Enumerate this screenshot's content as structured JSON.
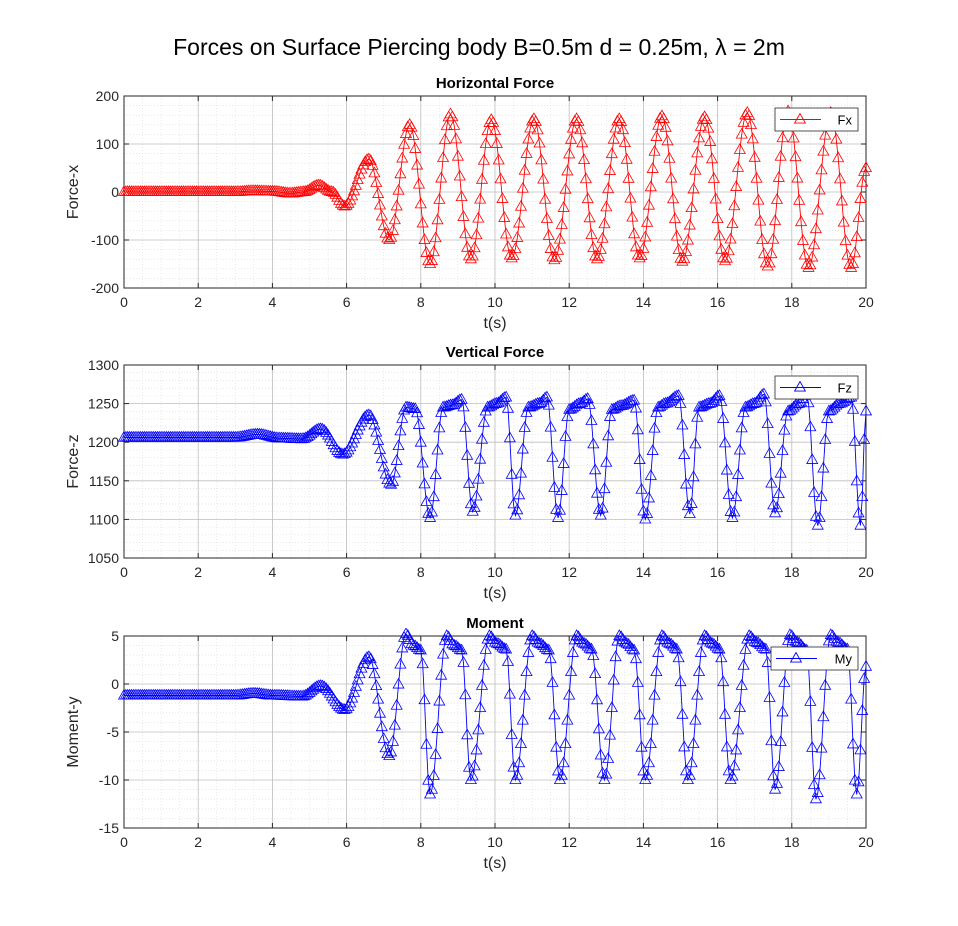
{
  "figure": {
    "title": "Forces on Surface Piercing body B=0.5m d = 0.25m, λ = 2m"
  },
  "chart_data": [
    {
      "type": "line",
      "title": "Horizontal Force",
      "xlabel": "t(s)",
      "ylabel": "Force-x",
      "xlim": [
        0,
        20
      ],
      "ylim": [
        -200,
        200
      ],
      "xticks": [
        "0",
        "2",
        "4",
        "6",
        "8",
        "10",
        "12",
        "14",
        "16",
        "18",
        "20"
      ],
      "yticks": [
        "-200",
        "-100",
        "0",
        "100",
        "200"
      ],
      "grid": true,
      "minor_grid": true,
      "legend_position": "top-right",
      "series": [
        {
          "name": "Fx",
          "color": "#ff0000",
          "marker": "triangle",
          "dt": 0.05,
          "x": [
            0,
            1,
            2,
            3,
            3.5,
            4,
            4.5,
            4.85,
            5.25,
            5.6,
            5.95,
            6.6,
            7.15,
            7.7,
            8.25,
            8.8,
            9.35,
            9.9,
            10.45,
            11.05,
            11.6,
            12.2,
            12.75,
            13.35,
            13.9,
            14.5,
            15.05,
            15.65,
            16.2,
            16.8,
            17.35,
            17.9,
            18.45,
            19.05,
            19.6,
            20
          ],
          "y": [
            0,
            0,
            0,
            0,
            2,
            1,
            -3,
            0,
            14,
            0,
            -30,
            68,
            -100,
            140,
            -150,
            162,
            -140,
            150,
            -138,
            152,
            -142,
            152,
            -140,
            152,
            -138,
            158,
            -145,
            156,
            -144,
            165,
            -155,
            168,
            -158,
            165,
            -158,
            50
          ]
        }
      ]
    },
    {
      "type": "line",
      "title": "Vertical Force",
      "xlabel": "t(s)",
      "ylabel": "Force-z",
      "xlim": [
        0,
        20
      ],
      "ylim": [
        1050,
        1300
      ],
      "xticks": [
        "0",
        "2",
        "4",
        "6",
        "8",
        "10",
        "12",
        "14",
        "16",
        "18",
        "20"
      ],
      "yticks": [
        "1050",
        "1100",
        "1150",
        "1200",
        "1250",
        "1300"
      ],
      "grid": true,
      "minor_grid": true,
      "legend_position": "top-right",
      "series": [
        {
          "name": "Fz",
          "color": "#0000ff",
          "marker": "triangle",
          "dt": 0.05,
          "x": [
            0,
            2,
            3,
            3.6,
            4.2,
            4.8,
            5.3,
            5.9,
            6.6,
            7.2,
            7.6,
            7.85,
            8.25,
            8.6,
            8.85,
            9.1,
            9.4,
            9.8,
            10.05,
            10.3,
            10.55,
            10.9,
            11.2,
            11.4,
            11.7,
            12.0,
            12.3,
            12.5,
            12.85,
            13.15,
            13.4,
            13.75,
            14.05,
            14.4,
            14.6,
            14.95,
            15.25,
            15.5,
            15.8,
            16.05,
            16.4,
            16.75,
            17.0,
            17.25,
            17.55,
            17.9,
            18.2,
            18.4,
            18.7,
            19.0,
            19.3,
            19.6,
            19.85,
            20
          ],
          "y": [
            1206,
            1206,
            1206,
            1210,
            1205,
            1204,
            1217,
            1184,
            1235,
            1145,
            1245,
            1243,
            1102,
            1245,
            1248,
            1255,
            1110,
            1245,
            1250,
            1258,
            1105,
            1245,
            1250,
            1258,
            1102,
            1242,
            1250,
            1256,
            1105,
            1242,
            1247,
            1254,
            1100,
            1245,
            1250,
            1260,
            1107,
            1245,
            1250,
            1260,
            1102,
            1245,
            1250,
            1262,
            1108,
            1240,
            1250,
            1262,
            1092,
            1240,
            1250,
            1258,
            1092,
            1240
          ]
        }
      ]
    },
    {
      "type": "line",
      "title": "Moment",
      "xlabel": "t(s)",
      "ylabel": "Moment-y",
      "xlim": [
        0,
        20
      ],
      "ylim": [
        -15,
        5
      ],
      "xticks": [
        "0",
        "2",
        "4",
        "6",
        "8",
        "10",
        "12",
        "14",
        "16",
        "18",
        "20"
      ],
      "yticks": [
        "-15",
        "-10",
        "-5",
        "0",
        "5"
      ],
      "grid": true,
      "minor_grid": true,
      "legend_position": "top-right",
      "series": [
        {
          "name": "My",
          "color": "#0000ff",
          "marker": "triangle",
          "dt": 0.05,
          "x": [
            0,
            1,
            2,
            3,
            3.5,
            4,
            4.8,
            5.3,
            5.95,
            6.6,
            7.15,
            7.6,
            7.8,
            8.0,
            8.25,
            8.7,
            8.9,
            9.1,
            9.35,
            9.85,
            10.05,
            10.3,
            10.55,
            11.0,
            11.2,
            11.45,
            11.75,
            12.2,
            12.4,
            12.6,
            12.95,
            13.35,
            13.55,
            13.75,
            14.05,
            14.5,
            14.7,
            14.9,
            15.2,
            15.65,
            15.85,
            16.05,
            16.35,
            16.85,
            17.05,
            17.3,
            17.55,
            17.95,
            18.15,
            18.4,
            18.65,
            19.05,
            19.25,
            19.5,
            19.75,
            20
          ],
          "y": [
            -1.2,
            -1.2,
            -1.2,
            -1.2,
            -1.0,
            -1.2,
            -1.3,
            -0.2,
            -2.7,
            2.8,
            -7.5,
            5.2,
            4.0,
            3.5,
            -11.5,
            5.0,
            4.0,
            3.5,
            -10.0,
            5.0,
            4.2,
            3.6,
            -10.0,
            5.0,
            4.2,
            3.5,
            -10.0,
            5.0,
            4.2,
            3.6,
            -10.0,
            5.0,
            4.2,
            3.5,
            -10.0,
            5.0,
            4.2,
            3.6,
            -10.0,
            5.0,
            4.2,
            3.6,
            -10.0,
            5.0,
            4.3,
            3.6,
            -11.0,
            5.1,
            4.3,
            3.5,
            -12.0,
            5.1,
            4.3,
            3.6,
            -11.5,
            1.8
          ]
        }
      ]
    }
  ]
}
